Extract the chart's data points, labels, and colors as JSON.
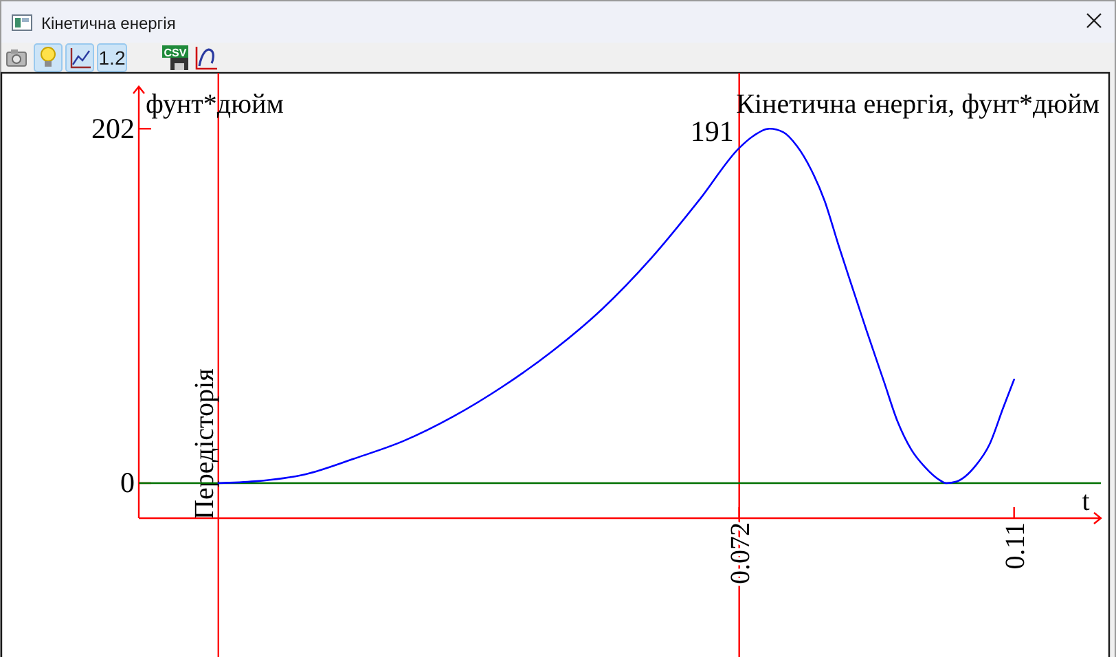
{
  "chart_data": {
    "type": "line",
    "title": "Кінетична енергія",
    "xlabel": "t",
    "ylabel": "фунт*дюйм",
    "x": [
      0,
      0.005,
      0.012,
      0.0188,
      0.0256,
      0.0325,
      0.0393,
      0.0461,
      0.053,
      0.0598,
      0.0666,
      0.072,
      0.074,
      0.0762,
      0.0781,
      0.08,
      0.0819,
      0.0838,
      0.0857,
      0.0876,
      0.0896,
      0.092,
      0.0939,
      0.0958,
      0.0977,
      0.0996,
      0.1006,
      0.1021,
      0.1047,
      0.1066,
      0.1085,
      0.11
    ],
    "series": [
      {
        "name": "Кінетична енергія, фунт*дюйм",
        "color": "#0000ff",
        "values": [
          0,
          1,
          5,
          14,
          24,
          38,
          55,
          75,
          99,
          128,
          162,
          191,
          198,
          202,
          200,
          192,
          179,
          161,
          136,
          112,
          87,
          58,
          35,
          19,
          9,
          2,
          0,
          1,
          10,
          22,
          43,
          59
        ]
      }
    ],
    "xlim": [
      -0.011,
      0.122
    ],
    "ylim": [
      -20,
      226
    ],
    "xticks": [
      0.072,
      0.11
    ],
    "yticks": [
      202,
      0
    ],
    "ref_lines": [
      {
        "axis": "x",
        "value": 0,
        "label": "Передісторія",
        "color": "#ff0000"
      },
      {
        "axis": "x",
        "value": 0.072,
        "color": "#ff0000"
      },
      {
        "axis": "y",
        "value": 0,
        "color": "#007000"
      }
    ],
    "annotations": [
      {
        "text": "191",
        "x": 0.072,
        "y": 191
      },
      "1.2",
      "CSV"
    ],
    "line_style": "solid"
  }
}
